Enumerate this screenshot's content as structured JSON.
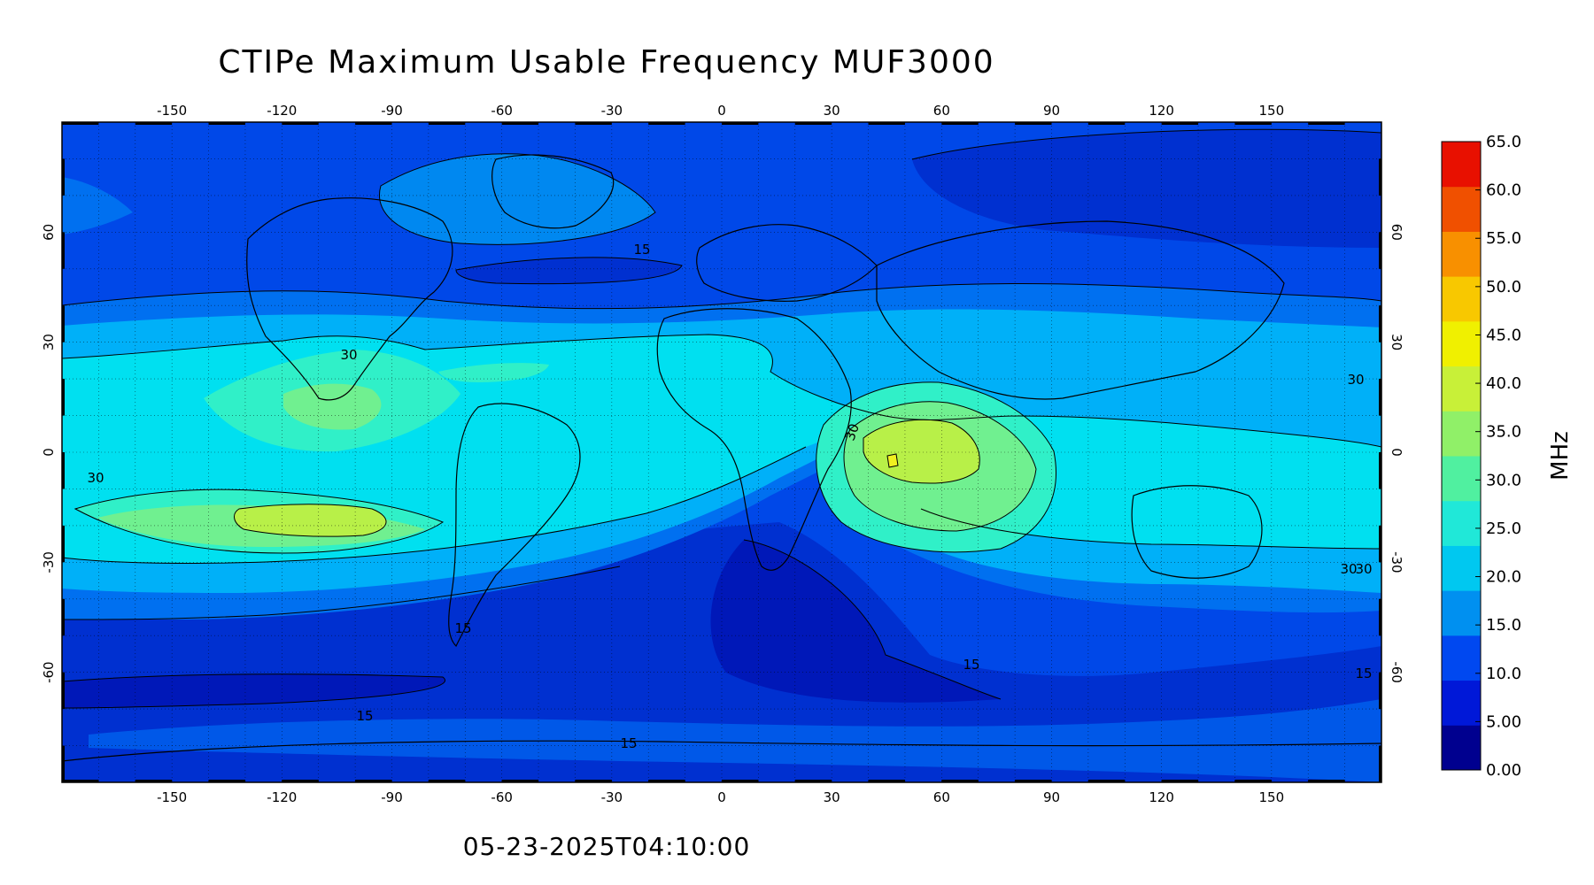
{
  "title": "CTIPe Maximum Usable Frequency MUF3000",
  "timestamp": "05-23-2025T04:10:00",
  "colorbar": {
    "unit": "MHz",
    "ticks": [
      "65.0",
      "60.0",
      "55.0",
      "50.0",
      "45.0",
      "40.0",
      "35.0",
      "30.0",
      "25.0",
      "20.0",
      "15.0",
      "10.0",
      "5.00",
      "0.00"
    ],
    "colors": [
      "#00008f",
      "#0018d8",
      "#0048f0",
      "#0090f0",
      "#00c8f0",
      "#20e8d8",
      "#50f0a0",
      "#90f068",
      "#c8f038",
      "#f0f000",
      "#f8c800",
      "#f89000",
      "#f05000",
      "#e81000"
    ]
  },
  "longitude_ticks": [
    "-150",
    "-120",
    "-90",
    "-60",
    "-30",
    "0",
    "30",
    "60",
    "90",
    "120",
    "150"
  ],
  "latitude_ticks": [
    "60",
    "30",
    "0",
    "-30",
    "-60"
  ],
  "contour_labels": [
    "30",
    "30",
    "30",
    "30",
    "30",
    "30",
    "15",
    "15",
    "15",
    "15",
    "15",
    "15"
  ],
  "colors": {
    "band_0_15": "#0040e0",
    "band_5_10": "#0028c8",
    "band_15_20": "#0070f0",
    "band_20_25": "#00b0f8",
    "band_25_30": "#00e0f0",
    "band_30_35": "#30f0c8",
    "band_35_40": "#70f090",
    "band_40_45": "#b8f048",
    "band_45_50": "#f0f020"
  }
}
